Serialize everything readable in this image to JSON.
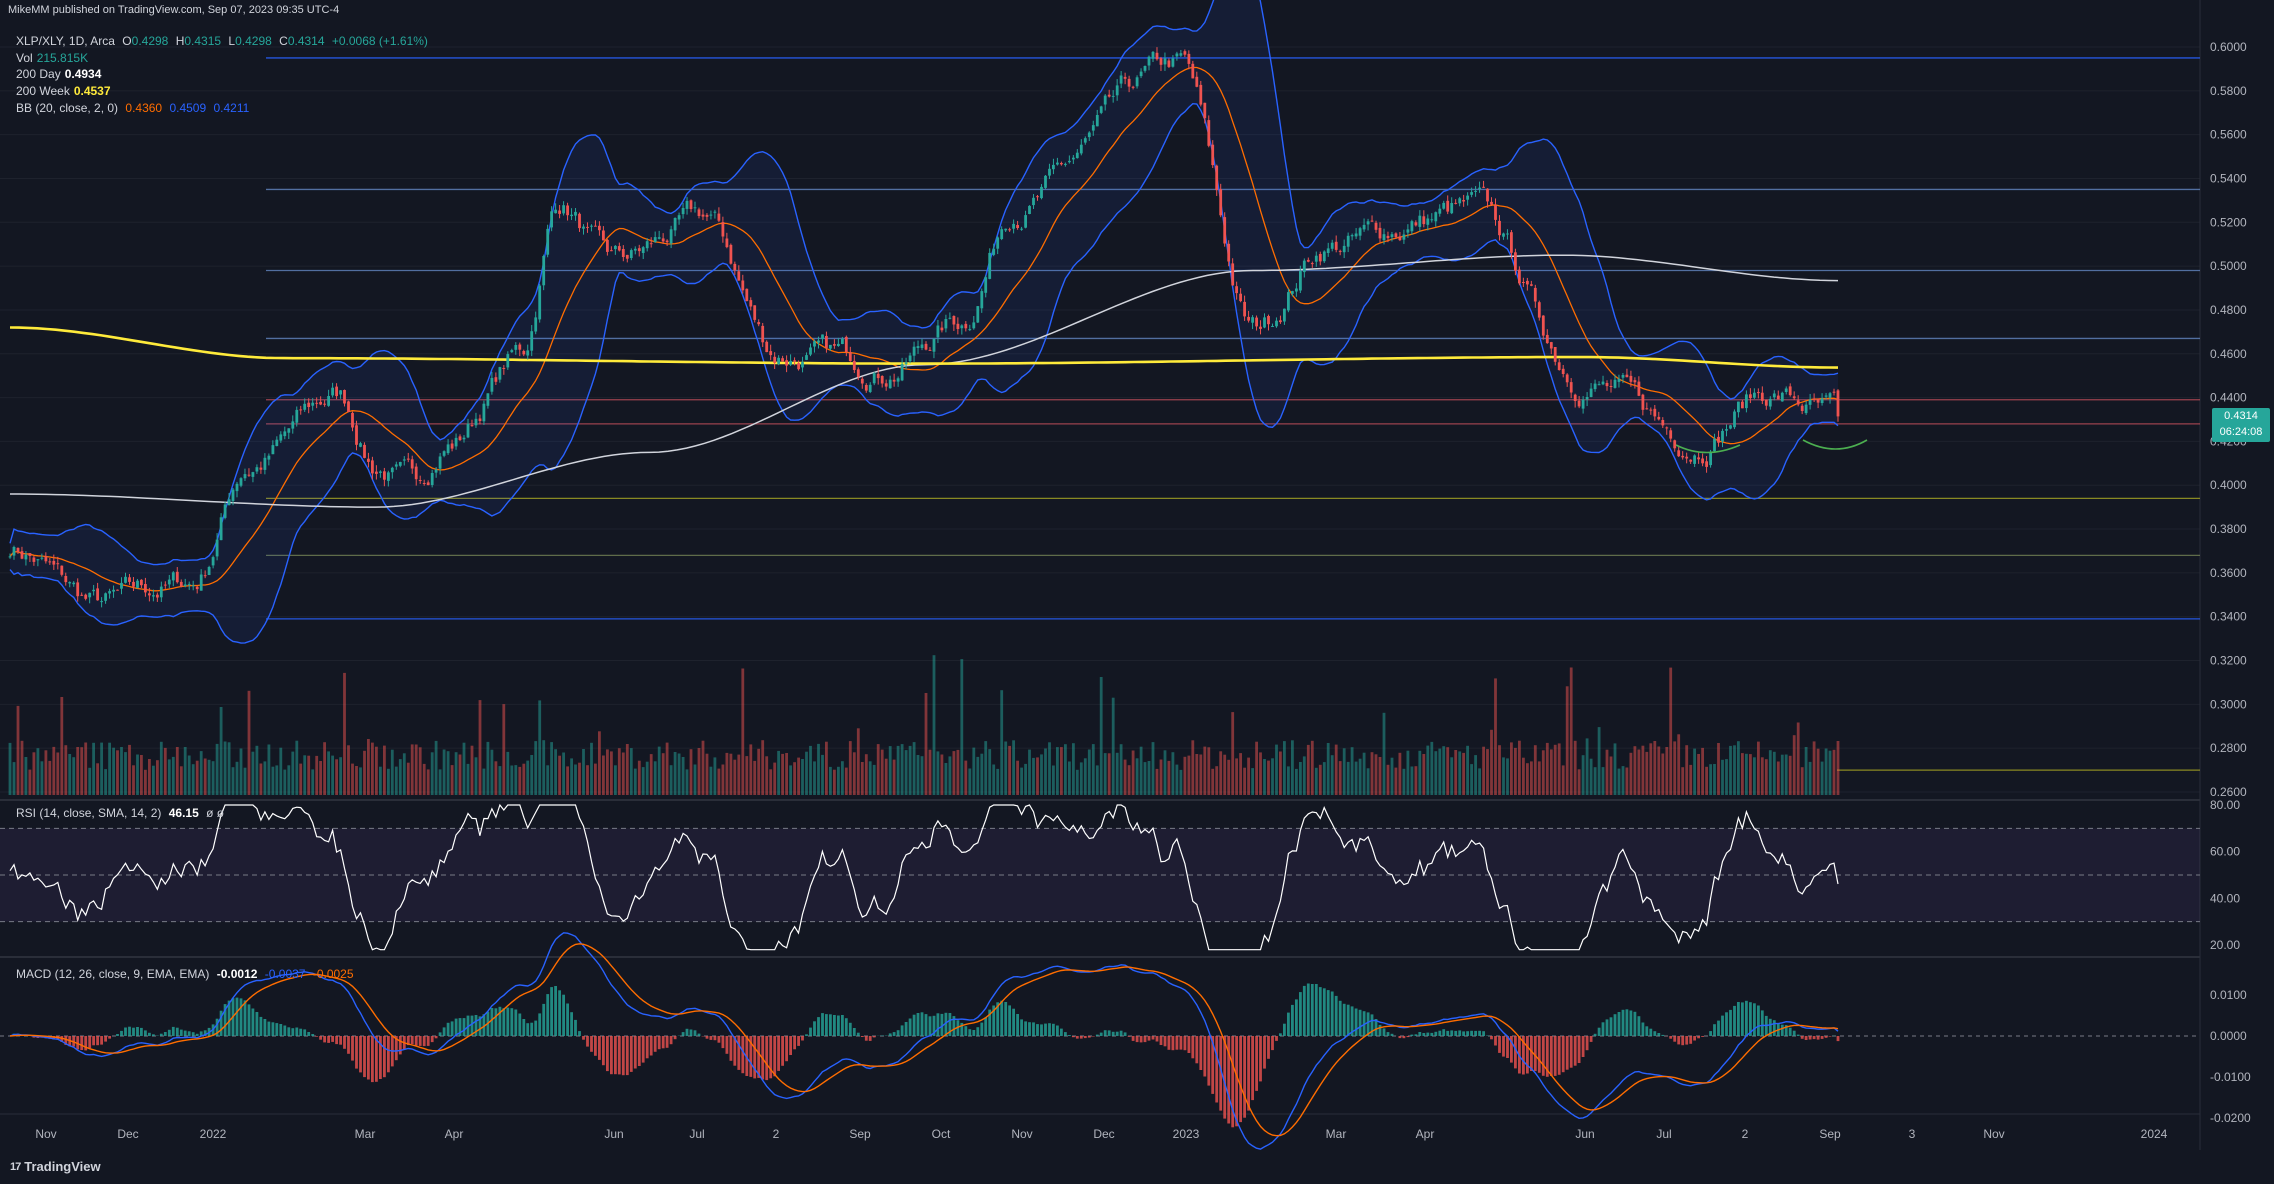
{
  "header": {
    "published": "MikeMM published on TradingView.com, Sep 07, 2023 09:35 UTC-4"
  },
  "legend": {
    "symbol": "XLP/XLY, 1D, Arca",
    "o_label": "O",
    "o": "0.4298",
    "h_label": "H",
    "h": "0.4315",
    "l_label": "L",
    "l": "0.4298",
    "c_label": "C",
    "c": "0.4314",
    "change": "+0.0068 (+1.61%)",
    "vol_label": "Vol",
    "vol": "215.815K",
    "ma200d_label": "200 Day",
    "ma200d": "0.4934",
    "ma200w_label": "200 Week",
    "ma200w": "0.4537",
    "bb_label": "BB (20, close, 2, 0)",
    "bb_basis": "0.4360",
    "bb_upper": "0.4509",
    "bb_lower": "0.4211",
    "rsi_label": "RSI (14, close, SMA, 14, 2)",
    "rsi": "46.15",
    "rsi_extra": "ø ø",
    "macd_label": "MACD (12, 26, close, 9, EMA, EMA)",
    "macd_hist": "-0.0012",
    "macd": "-0.0037",
    "macd_signal": "-0.0025"
  },
  "price_badge": {
    "price": "0.4314",
    "countdown": "06:24:08"
  },
  "footer": {
    "brand": "TradingView",
    "logo_text": "17"
  },
  "colors": {
    "up": "#26a69a",
    "down": "#ef5350",
    "bb": "#2962ff",
    "basis": "#ff6d00",
    "ma200w": "#ffeb3b",
    "ma200d": "#d1d4dc",
    "rsi": "#ffffff",
    "macd": "#2962ff",
    "signal": "#ff6d00"
  },
  "chart_data": [
    {
      "type": "candlestick",
      "title": "XLP/XLY, 1D, Arca",
      "ylim": [
        0.26,
        0.61
      ],
      "y_ticks": [
        "0.6000",
        "0.5800",
        "0.5600",
        "0.5400",
        "0.5200",
        "0.5000",
        "0.4800",
        "0.4600",
        "0.4400",
        "0.4200",
        "0.4000",
        "0.3800",
        "0.3600",
        "0.3400",
        "0.3200",
        "0.3000",
        "0.2800",
        "0.2600"
      ],
      "x_ticks": [
        "Nov",
        "Dec",
        "2022",
        "Mar",
        "Apr",
        "Jun",
        "Jul",
        "2",
        "Sep",
        "Oct",
        "Nov",
        "Dec",
        "2023",
        "Mar",
        "Apr",
        "Jun",
        "Jul",
        "2",
        "Sep",
        "3",
        "Nov",
        "2024"
      ],
      "key_prices": [
        {
          "t": 0.0,
          "p": 0.372
        },
        {
          "t": 0.05,
          "p": 0.345
        },
        {
          "t": 0.1,
          "p": 0.355
        },
        {
          "t": 0.13,
          "p": 0.41
        },
        {
          "t": 0.18,
          "p": 0.44
        },
        {
          "t": 0.2,
          "p": 0.41
        },
        {
          "t": 0.22,
          "p": 0.4
        },
        {
          "t": 0.24,
          "p": 0.42
        },
        {
          "t": 0.28,
          "p": 0.46
        },
        {
          "t": 0.3,
          "p": 0.53
        },
        {
          "t": 0.33,
          "p": 0.5
        },
        {
          "t": 0.38,
          "p": 0.52
        },
        {
          "t": 0.42,
          "p": 0.46
        },
        {
          "t": 0.48,
          "p": 0.455
        },
        {
          "t": 0.52,
          "p": 0.475
        },
        {
          "t": 0.55,
          "p": 0.53
        },
        {
          "t": 0.64,
          "p": 0.59
        },
        {
          "t": 0.68,
          "p": 0.47
        },
        {
          "t": 0.72,
          "p": 0.51
        },
        {
          "t": 0.8,
          "p": 0.525
        },
        {
          "t": 0.86,
          "p": 0.45
        },
        {
          "t": 0.92,
          "p": 0.421
        },
        {
          "t": 0.96,
          "p": 0.443
        },
        {
          "t": 1.0,
          "p": 0.4314
        }
      ],
      "ma200d_path": [
        {
          "t": 0.0,
          "p": 0.396
        },
        {
          "t": 0.2,
          "p": 0.39
        },
        {
          "t": 0.35,
          "p": 0.415
        },
        {
          "t": 0.5,
          "p": 0.455
        },
        {
          "t": 0.68,
          "p": 0.498
        },
        {
          "t": 0.85,
          "p": 0.505
        },
        {
          "t": 1.0,
          "p": 0.4934
        }
      ],
      "ma200w_path": [
        {
          "t": 0.0,
          "p": 0.472
        },
        {
          "t": 0.15,
          "p": 0.458
        },
        {
          "t": 0.5,
          "p": 0.4555
        },
        {
          "t": 0.86,
          "p": 0.4585
        },
        {
          "t": 1.0,
          "p": 0.4537
        }
      ],
      "hlines": [
        0.595,
        0.535,
        0.498,
        0.467,
        0.439,
        0.428,
        0.394,
        0.368,
        0.339,
        0.27
      ]
    },
    {
      "type": "line",
      "title": "RSI (14, close, SMA, 14, 2)",
      "ylim": [
        15,
        82
      ],
      "y_ticks": [
        "80.00",
        "60.00",
        "40.00",
        "20.00"
      ],
      "bands": [
        30,
        50,
        70
      ],
      "last": 46.15
    },
    {
      "type": "line",
      "title": "MACD (12, 26, close, 9, EMA, EMA)",
      "ylim": [
        -0.02,
        0.017
      ],
      "y_ticks": [
        "0.0100",
        "0.0000",
        "-0.0100",
        "-0.0200"
      ],
      "last": {
        "hist": -0.0012,
        "macd": -0.0037,
        "signal": -0.0025
      }
    }
  ]
}
